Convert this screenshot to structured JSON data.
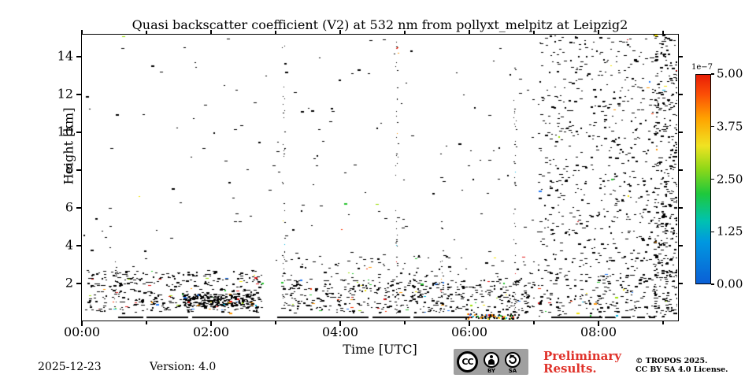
{
  "title": "Quasi backscatter coefficient (V2) at 532 nm from pollyxt_melpitz at Leipzig2",
  "plot": {
    "ylabel": "Height [km]",
    "xlabel": "Time [UTC]",
    "yticks": [
      {
        "label": "2",
        "km": 2
      },
      {
        "label": "4",
        "km": 4
      },
      {
        "label": "6",
        "km": 6
      },
      {
        "label": "8",
        "km": 8
      },
      {
        "label": "10",
        "km": 10
      },
      {
        "label": "12",
        "km": 12
      },
      {
        "label": "14",
        "km": 14
      }
    ],
    "xticks": [
      {
        "label": "00:00",
        "hour": 0
      },
      {
        "label": "02:00",
        "hour": 2
      },
      {
        "label": "04:00",
        "hour": 4
      },
      {
        "label": "06:00",
        "hour": 6
      },
      {
        "label": "08:00",
        "hour": 8
      }
    ],
    "xticks_minor_hours": [
      1,
      3,
      5,
      7,
      9
    ]
  },
  "colorbar": {
    "exponent": "1e−7",
    "ticks": [
      {
        "label": "5.00",
        "value": 5.0
      },
      {
        "label": "3.75",
        "value": 3.75
      },
      {
        "label": "2.50",
        "value": 2.5
      },
      {
        "label": "1.25",
        "value": 1.25
      },
      {
        "label": "0.00",
        "value": 0.0
      }
    ]
  },
  "footer": {
    "date": "2025-12-23",
    "version": "Version: 4.0",
    "preliminary_line1": "Preliminary",
    "preliminary_line2": "Results.",
    "copyright_line1": "© TROPOS 2025.",
    "copyright_line2": "CC BY SA 4.0 License.",
    "cc_badge": {
      "cc": "CC",
      "by": "BY",
      "sa": "SA"
    }
  },
  "colors": {
    "preliminary_red": "#e0332b",
    "badge_gray": "#a0a0a0",
    "speckle_black": "#000000"
  },
  "chart_data": {
    "type": "heatmap",
    "title": "Quasi backscatter coefficient (V2) at 532 nm from pollyxt_melpitz at Leipzig2",
    "xlabel": "Time [UTC]",
    "ylabel": "Height [km]",
    "x_range_hours": [
      0,
      9.25
    ],
    "y_range_km": [
      0,
      15.2
    ],
    "colorbar_range": [
      0,
      5e-07
    ],
    "colorbar_exponent": "1e-7",
    "colormap": "jet",
    "grid": false,
    "features": [
      "mostly clear sky rendered white with sparse black noise speckles",
      "weak aerosol/noise layer below ~2.6 km from 00:00-02:50 with denser cluster near 1 km around 01:40-02:30",
      "data gap ~02:50-03:05",
      "low-level speckle layer below ~2.1 km from 03:05-07:00",
      "dense noise speckles over all heights from 07:05 to end (~09:15)",
      "near-surface strong echo line at ~0.1 km with colored pixels 05:55-06:45",
      "faint vertical noise stripes near 03:07, 04:52, 05:34 and 06:42"
    ],
    "seed": 42,
    "palette": [
      "#1f77f4",
      "#00b4e0",
      "#22c32a",
      "#9add00",
      "#f2e200",
      "#ff9500",
      "#f83000",
      "#e01010"
    ],
    "noise_regions": [
      {
        "name": "background-sparse",
        "x": [
          0.0,
          7.0
        ],
        "y": [
          2.6,
          15.05
        ],
        "count": 150,
        "colored": 0.05
      },
      {
        "name": "left-low-layer",
        "x": [
          0.05,
          2.78
        ],
        "y": [
          0.35,
          2.6
        ],
        "count": 420,
        "colored": 0.09
      },
      {
        "name": "left-low-cluster",
        "x": [
          1.55,
          2.65
        ],
        "y": [
          0.65,
          1.35
        ],
        "count": 260,
        "colored": 0.08
      },
      {
        "name": "mid-low-layer",
        "x": [
          3.05,
          7.0
        ],
        "y": [
          0.35,
          2.1
        ],
        "count": 480,
        "colored": 0.09
      },
      {
        "name": "mid-low-upper",
        "x": [
          3.05,
          7.0
        ],
        "y": [
          2.1,
          3.4
        ],
        "count": 80,
        "colored": 0.06
      },
      {
        "name": "right-dense",
        "x": [
          7.05,
          9.22
        ],
        "y": [
          0.1,
          15.05
        ],
        "count": 800,
        "colored": 0.02
      },
      {
        "name": "right-edge-dense",
        "x": [
          8.85,
          9.22
        ],
        "y": [
          0.1,
          15.05
        ],
        "count": 260,
        "colored": 0.03
      },
      {
        "name": "right-low",
        "x": [
          7.05,
          9.22
        ],
        "y": [
          0.1,
          2.5
        ],
        "count": 140,
        "colored": 0.1
      }
    ],
    "vertical_stripes": [
      {
        "x_hour": 0.52,
        "y": [
          0.5,
          3.5
        ],
        "count": 15
      },
      {
        "x_hour": 3.12,
        "y": [
          0.3,
          14.5
        ],
        "count": 40
      },
      {
        "x_hour": 4.87,
        "y": [
          0.3,
          14.8
        ],
        "count": 45
      },
      {
        "x_hour": 5.57,
        "y": [
          0.3,
          6.0
        ],
        "count": 18
      },
      {
        "x_hour": 6.7,
        "y": [
          0.3,
          13.5
        ],
        "count": 45
      }
    ],
    "surface_line": {
      "y_km": 0.12,
      "thickness_px": 2,
      "segments_hours": [
        [
          0.56,
          0.95
        ],
        [
          1.0,
          1.65
        ],
        [
          1.71,
          2.76
        ],
        [
          3.02,
          4.44
        ],
        [
          4.5,
          5.08
        ],
        [
          5.14,
          6.05
        ],
        [
          7.27,
          8.06
        ],
        [
          8.1,
          8.25
        ],
        [
          8.35,
          8.5
        ],
        [
          8.6,
          8.72
        ],
        [
          8.78,
          8.88
        ]
      ],
      "colored_segment": {
        "x": [
          5.93,
          6.78
        ],
        "y_km": [
          0.03,
          0.28
        ],
        "count": 85
      }
    }
  }
}
